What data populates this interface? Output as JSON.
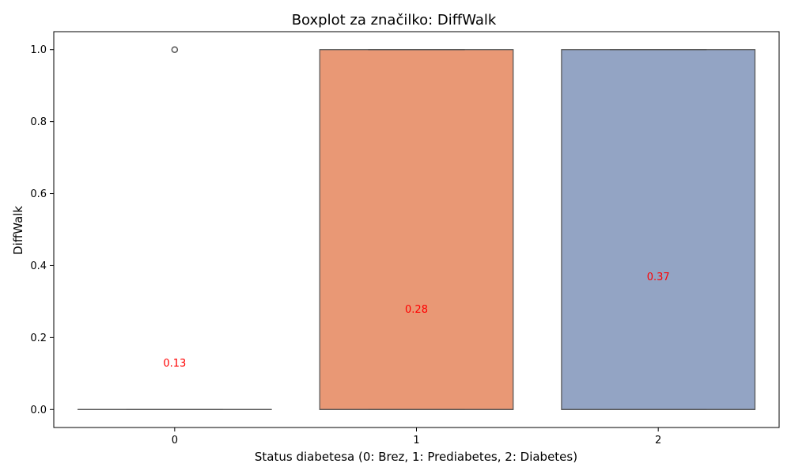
{
  "chart_data": {
    "type": "boxplot",
    "title": "Boxplot za značilko: DiffWalk",
    "xlabel": "Status diabetesa (0: Brez, 1: Prediabetes, 2: Diabetes)",
    "ylabel": "DiffWalk",
    "categories": [
      "0",
      "1",
      "2"
    ],
    "ylim": [
      -0.05,
      1.05
    ],
    "yticks": [
      0.0,
      0.2,
      0.4,
      0.6,
      0.8,
      1.0
    ],
    "ytick_labels": [
      "0.0",
      "0.2",
      "0.4",
      "0.6",
      "0.8",
      "1.0"
    ],
    "grid": false,
    "boxes": [
      {
        "category": "0",
        "q1": 0,
        "median": 0,
        "q3": 0,
        "whisker_low": 0,
        "whisker_high": 0,
        "outliers": [
          1.0
        ],
        "color": "#66c2a5"
      },
      {
        "category": "1",
        "q1": 0,
        "median": 0,
        "q3": 1,
        "whisker_low": 0,
        "whisker_high": 1,
        "outliers": [],
        "color": "#e99875"
      },
      {
        "category": "2",
        "q1": 0,
        "median": 0,
        "q3": 1,
        "whisker_low": 0,
        "whisker_high": 1,
        "outliers": [],
        "color": "#93a4c4"
      }
    ],
    "means": [
      {
        "category": "0",
        "value": 0.13,
        "label": "0.13"
      },
      {
        "category": "1",
        "value": 0.28,
        "label": "0.28"
      },
      {
        "category": "2",
        "value": 0.37,
        "label": "0.37"
      }
    ],
    "mean_label_color": "#ff0000",
    "box_edge_color": "#555555"
  }
}
